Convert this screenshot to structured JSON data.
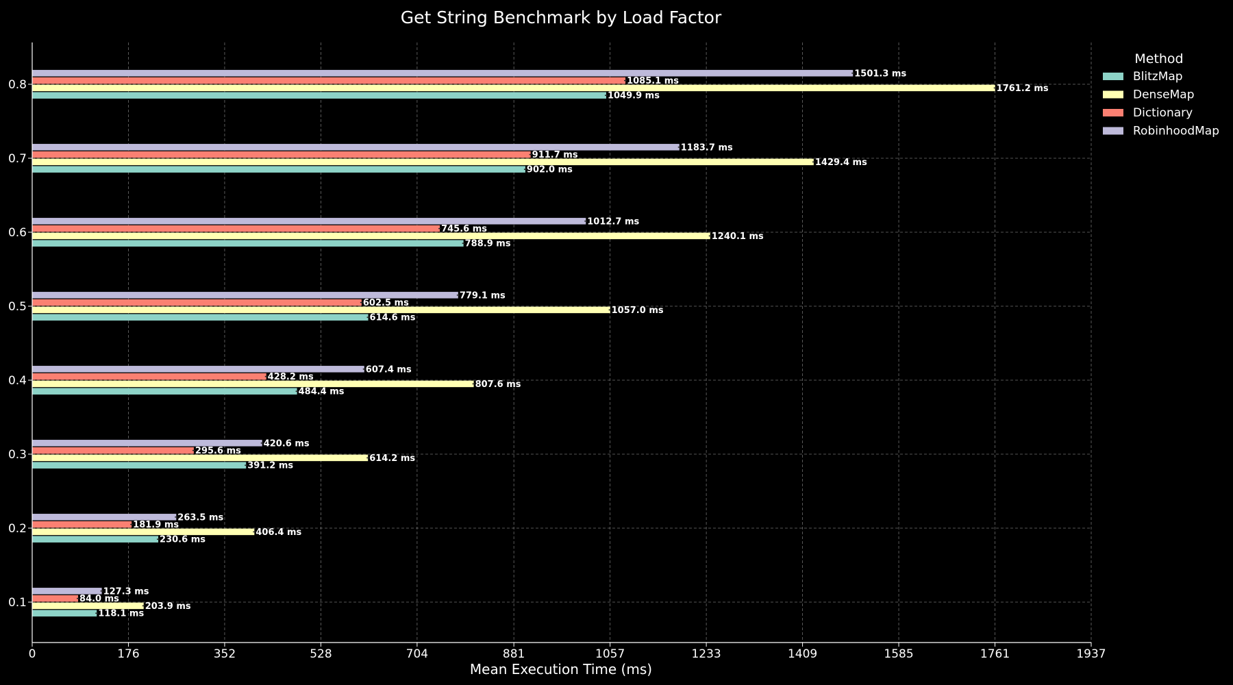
{
  "chart_data": {
    "type": "bar",
    "orientation": "horizontal",
    "title": "Get String Benchmark by Load Factor",
    "xlabel": "Mean Execution Time (ms)",
    "ylabel": "",
    "xlim": [
      0,
      1937
    ],
    "xticks": [
      "0",
      "176",
      "352",
      "528",
      "704",
      "881",
      "1057",
      "1233",
      "1409",
      "1585",
      "1761",
      "1937"
    ],
    "xtick_values": [
      0,
      176,
      352,
      528,
      704,
      881,
      1057,
      1233,
      1409,
      1585,
      1761,
      1937
    ],
    "categories": [
      "0.1",
      "0.2",
      "0.3",
      "0.4",
      "0.5",
      "0.6",
      "0.7",
      "0.8"
    ],
    "value_suffix": " ms",
    "grid": true,
    "legend_title": "Method",
    "legend_position": "top-right",
    "series": [
      {
        "name": "BlitzMap",
        "color": "#8dd3c7",
        "values": [
          118.1,
          230.6,
          391.2,
          484.4,
          614.6,
          788.9,
          902.0,
          1049.9
        ]
      },
      {
        "name": "DenseMap",
        "color": "#ffffb3",
        "values": [
          203.9,
          406.4,
          614.2,
          807.6,
          1057.0,
          1240.1,
          1429.4,
          1761.2
        ]
      },
      {
        "name": "Dictionary",
        "color": "#fb8072",
        "values": [
          84.0,
          181.9,
          295.6,
          428.2,
          602.5,
          745.6,
          911.7,
          1085.1
        ]
      },
      {
        "name": "RobinhoodMap",
        "color": "#bebada",
        "values": [
          127.3,
          263.5,
          420.6,
          607.4,
          779.1,
          1012.7,
          1183.7,
          1501.3
        ]
      }
    ]
  }
}
